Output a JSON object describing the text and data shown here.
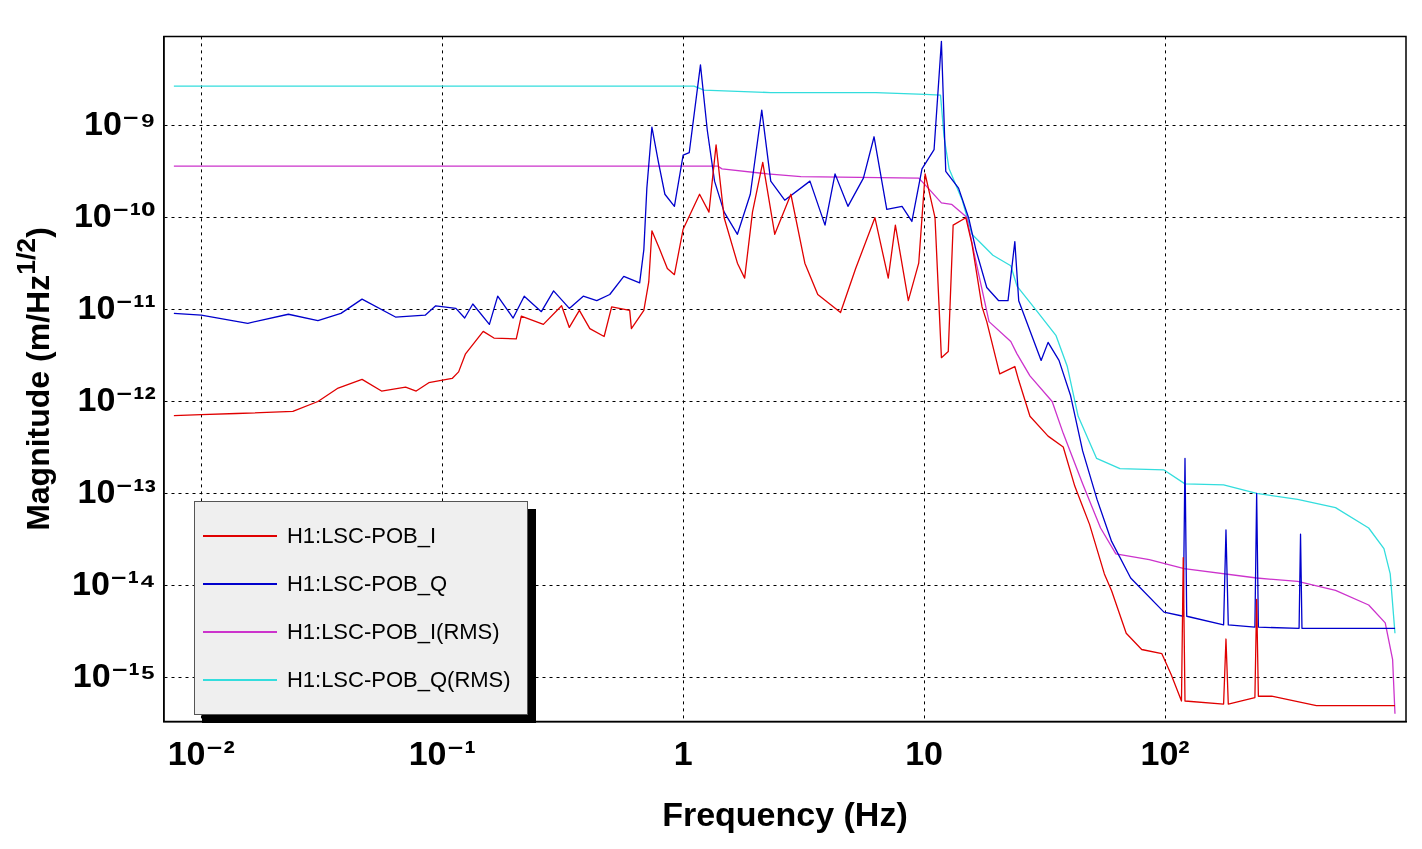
{
  "chart_data": {
    "type": "line",
    "xlabel": "Frequency (Hz)",
    "ylabel": "Magnitude (m/Hz$^{1/2}$)",
    "log": "xy",
    "grid": true,
    "legend": "bottom left",
    "marker": "none",
    "line_style": "solid",
    "xlim": [
      0.007,
      1000
    ],
    "ylim": [
      3.3e-16,
      9.4e-09
    ],
    "xticks": [
      {
        "value": 0.01,
        "label": "10⁻²"
      },
      {
        "value": 0.1,
        "label": "10⁻¹"
      },
      1,
      10,
      {
        "value": 100,
        "label": "10²"
      }
    ],
    "yticks": [
      {
        "value": 1e-15,
        "label": "10⁻¹⁵"
      },
      {
        "value": 1e-14,
        "label": "10⁻¹⁴"
      },
      {
        "value": 1e-13,
        "label": "10⁻¹³"
      },
      {
        "value": 1e-12,
        "label": "10⁻¹²"
      },
      {
        "value": 1e-11,
        "label": "10⁻¹¹"
      },
      {
        "value": 1e-10,
        "label": "10⁻¹⁰"
      },
      {
        "value": 1e-09,
        "label": "10⁻⁹"
      }
    ],
    "series": [
      {
        "name": "H1:LSC-POB_I",
        "color": "#e00000",
        "x": [
          0.0077,
          0.01,
          0.014,
          0.024,
          0.0305,
          0.037,
          0.0465,
          0.056,
          0.0705,
          0.078,
          0.088,
          0.11,
          0.117,
          0.125,
          0.148,
          0.164,
          0.203,
          0.213,
          0.263,
          0.313,
          0.337,
          0.371,
          0.41,
          0.47,
          0.505,
          0.6,
          0.61,
          0.687,
          0.72,
          0.742,
          0.8,
          0.86,
          0.92,
          1.0,
          1.17,
          1.28,
          1.37,
          1.48,
          1.68,
          1.8,
          1.94,
          2.14,
          2.4,
          2.8,
          3.2,
          3.62,
          4.5,
          5.2,
          6.25,
          7.1,
          7.6,
          8.6,
          9.5,
          10.1,
          11.1,
          11.8,
          12.6,
          13.2,
          14.9,
          15.8,
          17.4,
          18.2,
          20.6,
          23.8,
          24.7,
          27.5,
          32.7,
          37.8,
          42.2,
          48.6,
          56,
          60,
          69,
          80,
          97,
          106,
          117,
          119,
          121,
          175,
          179,
          183,
          236,
          240,
          244,
          277,
          425,
          900
        ],
        "values": [
          7e-13,
          7.2e-13,
          7.4e-13,
          7.8e-13,
          1e-12,
          1.4e-12,
          1.74e-12,
          1.3e-12,
          1.43e-12,
          1.3e-12,
          1.6e-12,
          1.78e-12,
          2.1e-12,
          3.3e-12,
          5.8e-12,
          4.9e-12,
          4.8e-12,
          8.5e-12,
          6.9e-12,
          1.1e-11,
          6.4e-12,
          9.8e-12,
          6.2e-12,
          5.1e-12,
          1.07e-11,
          9.8e-12,
          6.2e-12,
          9.8e-12,
          2e-11,
          7.2e-11,
          4.5e-11,
          2.8e-11,
          2.4e-11,
          7.5e-11,
          1.8e-10,
          1.15e-10,
          6.2e-10,
          1e-10,
          3.2e-11,
          2.2e-11,
          1.15e-10,
          4e-10,
          6.6e-11,
          1.8e-10,
          3.2e-11,
          1.46e-11,
          9.3e-12,
          2.8e-11,
          1e-10,
          2.2e-11,
          8.3e-11,
          1.25e-11,
          3.2e-11,
          3e-10,
          1e-10,
          3e-12,
          3.5e-12,
          8.3e-11,
          1e-10,
          5.2e-11,
          1.07e-11,
          7.4e-12,
          2e-12,
          2.4e-12,
          1.7e-12,
          6.9e-13,
          4.2e-13,
          3.2e-13,
          1.2e-13,
          4.6e-14,
          1.33e-14,
          8.7e-15,
          3e-15,
          2e-15,
          1.8e-15,
          1.07e-15,
          5.5e-16,
          2e-14,
          5.5e-16,
          5.1e-16,
          2.6e-15,
          5.1e-16,
          6e-16,
          7e-15,
          6.2e-16,
          6.2e-16,
          4.9e-16,
          4.9e-16
        ]
      },
      {
        "name": "H1:LSC-POB_Q",
        "color": "#0000cc",
        "x": [
          0.0077,
          0.01,
          0.0156,
          0.023,
          0.0305,
          0.038,
          0.0465,
          0.064,
          0.085,
          0.094,
          0.114,
          0.124,
          0.134,
          0.157,
          0.17,
          0.197,
          0.219,
          0.258,
          0.29,
          0.337,
          0.385,
          0.438,
          0.496,
          0.567,
          0.66,
          0.687,
          0.707,
          0.742,
          0.79,
          0.84,
          0.92,
          1.0,
          1.06,
          1.18,
          1.26,
          1.35,
          1.48,
          1.68,
          1.9,
          2.12,
          2.31,
          2.64,
          3.36,
          3.88,
          4.27,
          4.83,
          5.6,
          6.2,
          7.0,
          8.1,
          8.9,
          9.8,
          11.0,
          11.8,
          12.3,
          13.9,
          15.3,
          16.4,
          18.2,
          20.4,
          22.3,
          23.8,
          24.7,
          30.6,
          32.7,
          36.3,
          40.5,
          45.5,
          52.2,
          60,
          72,
          99,
          119,
          121,
          123,
          175,
          179,
          183,
          236,
          240,
          244,
          360,
          365,
          370,
          900
        ],
        "values": [
          9.1e-12,
          8.7e-12,
          7.1e-12,
          8.9e-12,
          7.6e-12,
          9.1e-12,
          1.3e-11,
          8.3e-12,
          8.7e-12,
          1.1e-11,
          1.03e-11,
          8.1e-12,
          1.15e-11,
          6.9e-12,
          1.4e-11,
          8.1e-12,
          1.4e-11,
          9.5e-12,
          1.6e-11,
          1.03e-11,
          1.4e-11,
          1.25e-11,
          1.46e-11,
          2.3e-11,
          1.95e-11,
          4.5e-11,
          2.1e-10,
          9.7e-10,
          4e-10,
          1.8e-10,
          1.33e-10,
          4.8e-10,
          5.1e-10,
          4.6e-09,
          8.9e-10,
          2.5e-10,
          1.15e-10,
          6.6e-11,
          1.8e-10,
          1.48e-09,
          2.5e-10,
          1.55e-10,
          2.5e-10,
          8.3e-11,
          3e-10,
          1.33e-10,
          2.7e-10,
          7.6e-10,
          1.23e-10,
          1.33e-10,
          9.1e-11,
          3.4e-10,
          5.5e-10,
          8.3e-09,
          3.2e-10,
          2.1e-10,
          1e-10,
          4.5e-11,
          1.74e-11,
          1.25e-11,
          1.25e-11,
          5.5e-11,
          1.25e-11,
          2.8e-12,
          4.4e-12,
          2.8e-12,
          1.17e-12,
          2.9e-13,
          8.6e-14,
          3e-14,
          1.2e-14,
          5.1e-15,
          4.6e-15,
          2.4e-13,
          4.6e-15,
          3.7e-15,
          4e-14,
          3.7e-15,
          3.5e-15,
          1e-13,
          3.5e-15,
          3.4e-15,
          3.6e-14,
          3.4e-15,
          3.4e-15
        ]
      },
      {
        "name": "H1:LSC-POB_I(RMS)",
        "color": "#cc33cc",
        "x": [
          0.0077,
          1.39,
          1.45,
          2.24,
          3.08,
          9.5,
          10.4,
          11.8,
          13.0,
          15.0,
          16.1,
          18.6,
          22.9,
          24.3,
          27.5,
          34,
          37.8,
          45.5,
          54,
          62.5,
          86,
          120,
          240,
          355,
          510,
          700,
          820,
          880,
          900
        ],
        "values": [
          3.65e-10,
          3.65e-10,
          3.4e-10,
          3e-10,
          2.8e-10,
          2.7e-10,
          2.1e-10,
          1.45e-10,
          1.4e-10,
          1.02e-10,
          4.2e-11,
          7.4e-12,
          4.5e-12,
          3.3e-12,
          1.9e-12,
          1e-12,
          4.5e-13,
          1.27e-13,
          4.2e-14,
          2.2e-14,
          1.9e-14,
          1.52e-14,
          1.2e-14,
          1.1e-14,
          8.8e-15,
          6.1e-15,
          3.9e-15,
          1.55e-15,
          4e-16
        ]
      },
      {
        "name": "H1:LSC-POB_Q(RMS)",
        "color": "#33dddd",
        "x": [
          0.0077,
          1.11,
          1.22,
          2.31,
          6.3,
          10.1,
          11.7,
          12.1,
          12.7,
          14.4,
          15.8,
          19.3,
          22.9,
          24.3,
          29.5,
          35.3,
          39.3,
          43.6,
          52,
          65,
          99,
          121,
          175,
          240,
          355,
          510,
          700,
          810,
          860,
          900
        ],
        "values": [
          2.7e-09,
          2.7e-09,
          2.45e-09,
          2.3e-09,
          2.3e-09,
          2.2e-09,
          2.16e-09,
          7.6e-10,
          3.4e-10,
          1.55e-10,
          6.6e-11,
          3.9e-11,
          3e-11,
          1.8e-11,
          9.5e-12,
          5.2e-12,
          2.4e-12,
          6.9e-13,
          2.4e-13,
          1.86e-13,
          1.8e-13,
          1.27e-13,
          1.24e-13,
          1e-13,
          8.6e-14,
          7e-14,
          4.2e-14,
          2.5e-14,
          1.33e-14,
          3e-15
        ]
      }
    ]
  }
}
